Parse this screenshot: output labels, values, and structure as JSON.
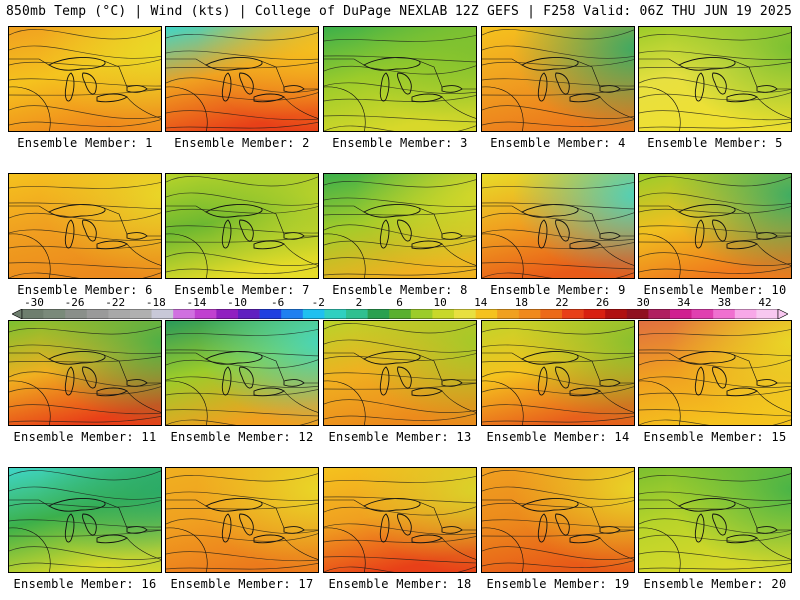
{
  "header": {
    "title_left": "850mb Temp (°C) | Wind (kts) | College of DuPage NEXLAB",
    "title_right": "12Z GEFS | F258 Valid: 06Z THU JUN 19 2025"
  },
  "members": [
    {
      "label": "Ensemble Member: 1",
      "top": "#f0a020",
      "mid": "#f5c21e",
      "bot": "#f08a1c",
      "right": "#e8dc28"
    },
    {
      "label": "Ensemble Member: 2",
      "top": "#3fd6c8",
      "mid": "#f0a020",
      "bot": "#e84018",
      "right": "#f5c21e"
    },
    {
      "label": "Ensemble Member: 3",
      "top": "#3cb04a",
      "mid": "#9ccc2a",
      "bot": "#d8d82a",
      "right": "#7cc030"
    },
    {
      "label": "Ensemble Member: 4",
      "top": "#f5c21e",
      "mid": "#f0a020",
      "bot": "#ec7a1c",
      "right": "#2aaa6a"
    },
    {
      "label": "Ensemble Member: 5",
      "top": "#9ccc2a",
      "mid": "#e8e040",
      "bot": "#f0e030",
      "right": "#6cbc30"
    },
    {
      "label": "Ensemble Member: 6",
      "top": "#f5c21e",
      "mid": "#f0a020",
      "bot": "#ec8a1c",
      "right": "#e8dc28"
    },
    {
      "label": "Ensemble Member: 7",
      "top": "#b8d42a",
      "mid": "#6cb830",
      "bot": "#e8dc28",
      "right": "#c0d42a"
    },
    {
      "label": "Ensemble Member: 8",
      "top": "#3cb04a",
      "mid": "#a4cc2a",
      "bot": "#f0b020",
      "right": "#d8d82a"
    },
    {
      "label": "Ensemble Member: 9",
      "top": "#e8dc28",
      "mid": "#f0a020",
      "bot": "#e85a18",
      "right": "#3fd6c8"
    },
    {
      "label": "Ensemble Member: 10",
      "top": "#9ccc2a",
      "mid": "#f0c020",
      "bot": "#f07a1c",
      "right": "#2aaa6a"
    },
    {
      "label": "Ensemble Member: 11",
      "top": "#7cc030",
      "mid": "#f0b020",
      "bot": "#e84018",
      "right": "#3cb04a"
    },
    {
      "label": "Ensemble Member: 12",
      "top": "#2a9a5a",
      "mid": "#9ccc2a",
      "bot": "#f0a020",
      "right": "#3fd6c8"
    },
    {
      "label": "Ensemble Member: 13",
      "top": "#b8d42a",
      "mid": "#f0b020",
      "bot": "#ec8a1c",
      "right": "#9ccc2a"
    },
    {
      "label": "Ensemble Member: 14",
      "top": "#c0d42a",
      "mid": "#f5c21e",
      "bot": "#e8601c",
      "right": "#7cc030"
    },
    {
      "label": "Ensemble Member: 15",
      "top": "#e07040",
      "mid": "#f0a020",
      "bot": "#f5c21e",
      "right": "#e8dc28"
    },
    {
      "label": "Ensemble Member: 16",
      "top": "#3fd6c8",
      "mid": "#3cb04a",
      "bot": "#d8d82a",
      "right": "#2aaa6a"
    },
    {
      "label": "Ensemble Member: 17",
      "top": "#f0b020",
      "mid": "#f0a020",
      "bot": "#ec7a1c",
      "right": "#e8dc28"
    },
    {
      "label": "Ensemble Member: 18",
      "top": "#f5c21e",
      "mid": "#f0a020",
      "bot": "#e84018",
      "right": "#d8d82a"
    },
    {
      "label": "Ensemble Member: 19",
      "top": "#f0a020",
      "mid": "#ec8a1c",
      "bot": "#e85a18",
      "right": "#e8dc28"
    },
    {
      "label": "Ensemble Member: 20",
      "top": "#7cc030",
      "mid": "#b8d42a",
      "bot": "#d8d82a",
      "right": "#3cb04a"
    }
  ],
  "scale": {
    "labels": [
      "-30",
      "-26",
      "-22",
      "-18",
      "-14",
      "-10",
      "-6",
      "-2",
      "2",
      "6",
      "10",
      "14",
      "18",
      "22",
      "26",
      "30",
      "34",
      "38",
      "42"
    ],
    "colors": [
      "#6e7e6e",
      "#7a8a7a",
      "#8a8f8a",
      "#9a9a9a",
      "#a8a8a8",
      "#b0b0b0",
      "#c8c8d8",
      "#d070e0",
      "#c040d0",
      "#9020c0",
      "#6020c0",
      "#2040e0",
      "#2080f0",
      "#20c0f0",
      "#30d0c0",
      "#30c090",
      "#2aa050",
      "#5ab030",
      "#9ccc2a",
      "#c8d82a",
      "#e8e040",
      "#f5c21e",
      "#f0a020",
      "#f08a1c",
      "#ec6a18",
      "#e84018",
      "#d82010",
      "#b01010",
      "#901020",
      "#b02060",
      "#d02090",
      "#e040b0",
      "#f070d0",
      "#f8a8e8",
      "#f8c8f0"
    ]
  }
}
